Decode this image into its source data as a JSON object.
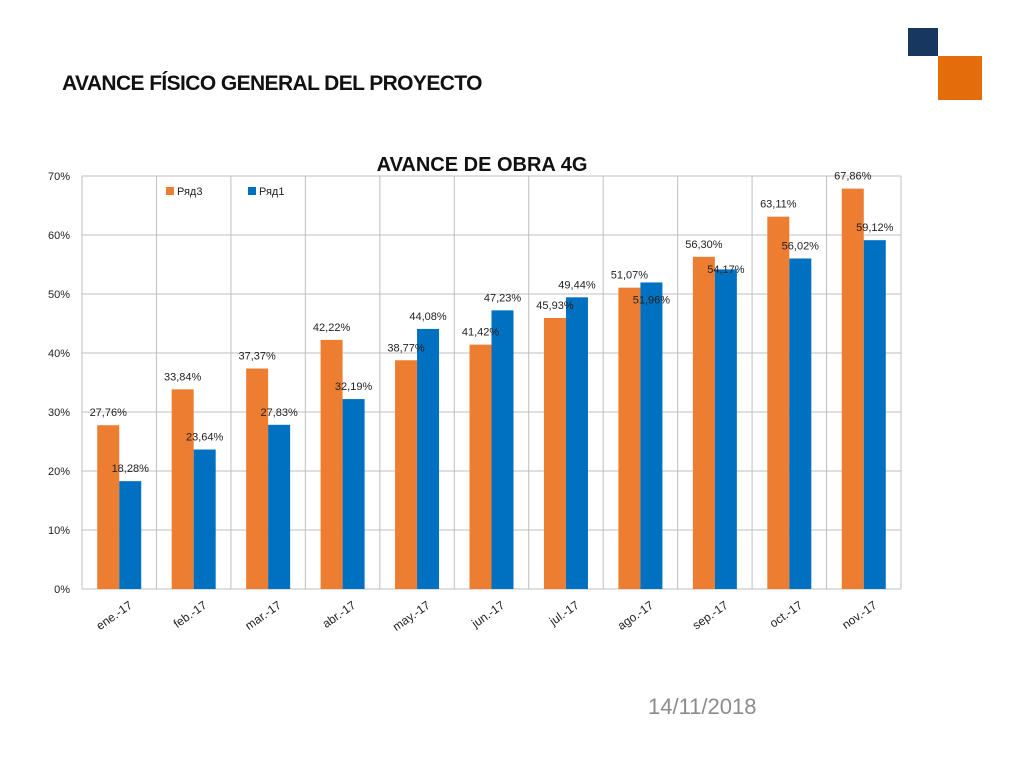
{
  "slide": {
    "title": "AVANCE FÍSICO GENERAL DEL PROYECTO",
    "date": "14/11/2018"
  },
  "colors": {
    "navy_square": "#17375e",
    "orange_square": "#e46c0a",
    "series_orange": "#ed7d31",
    "series_blue": "#0070c0",
    "grid": "#bfbfbf",
    "text": "#222222"
  },
  "chart_data": {
    "type": "bar",
    "title": "AVANCE DE OBRA 4G",
    "xlabel": "",
    "ylabel": "",
    "ylim": [
      0,
      0.7
    ],
    "y_ticks": [
      0,
      0.1,
      0.2,
      0.3,
      0.4,
      0.5,
      0.6,
      0.7
    ],
    "y_tick_labels": [
      "0%",
      "10%",
      "20%",
      "30%",
      "40%",
      "50%",
      "60%",
      "70%"
    ],
    "grid": "both",
    "legend_position": "top-left",
    "categories": [
      "ene.-17",
      "feb.-17",
      "mar.-17",
      "abr.-17",
      "may.-17",
      "jun.-17",
      "jul.-17",
      "ago.-17",
      "sep.-17",
      "oct.-17",
      "nov.-17"
    ],
    "series": [
      {
        "name": "Ряд3",
        "color": "#ed7d31",
        "values": [
          0.2776,
          0.3384,
          0.3737,
          0.4222,
          0.3877,
          0.4142,
          0.4593,
          0.5107,
          0.563,
          0.6311,
          0.6786
        ],
        "labels": [
          "27,76%",
          "33,84%",
          "37,37%",
          "42,22%",
          "38,77%",
          "41,42%",
          "45,93%",
          "51,07%",
          "56,30%",
          "63,11%",
          "67,86%"
        ]
      },
      {
        "name": "Ряд1",
        "color": "#0070c0",
        "values": [
          0.1828,
          0.2364,
          0.2783,
          0.3219,
          0.4408,
          0.4723,
          0.4944,
          0.5196,
          0.5417,
          0.5602,
          0.5912
        ],
        "labels": [
          "18,28%",
          "23,64%",
          "27,83%",
          "32,19%",
          "44,08%",
          "47,23%",
          "49,44%",
          "51,96%",
          "54,17%",
          "56,02%",
          "59,12%"
        ]
      }
    ]
  }
}
